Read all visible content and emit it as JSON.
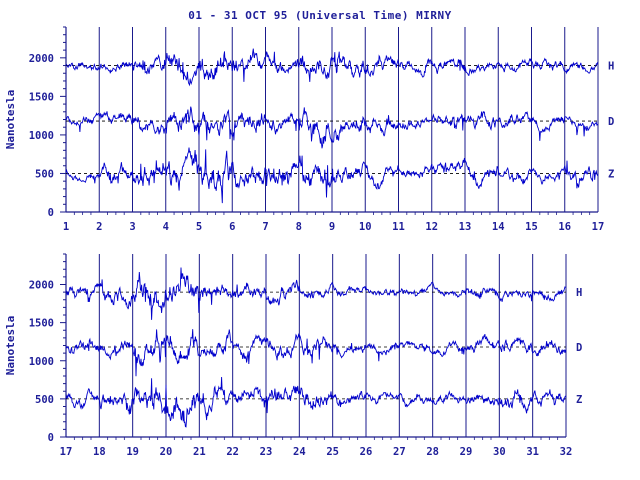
{
  "title": "01 - 31 OCT 95 (Universal Time) MIRNY",
  "chart_data": [
    {
      "type": "line",
      "panel": "top",
      "xlabel": "",
      "ylabel": "Nanotesla",
      "x_ticks": [
        "1",
        "2",
        "3",
        "4",
        "5",
        "6",
        "7",
        "8",
        "9",
        "10",
        "11",
        "12",
        "13",
        "14",
        "15",
        "16",
        "17"
      ],
      "xlim": [
        1,
        17
      ],
      "y_ticks": [
        "2000",
        "1500",
        "1000",
        "500",
        "0"
      ],
      "ylim": [
        0,
        2400
      ],
      "grid": "vertical at each day",
      "series": [
        {
          "name": "H",
          "baseline": 1900,
          "amplitude": 1.0,
          "activity": [
            0.6,
            0.9,
            1.2,
            1.8,
            2.2,
            1.6,
            1.3,
            1.8,
            1.6,
            1.2,
            0.9,
            1.1,
            0.9,
            0.8,
            0.9,
            0.7
          ]
        },
        {
          "name": "D",
          "baseline": 1180,
          "amplitude": 1.0,
          "activity": [
            0.7,
            1.0,
            1.2,
            1.8,
            2.0,
            1.6,
            1.3,
            1.9,
            1.6,
            1.3,
            1.0,
            1.3,
            1.1,
            0.9,
            0.9,
            1.0
          ]
        },
        {
          "name": "Z",
          "baseline": 500,
          "amplitude": 1.0,
          "activity": [
            0.7,
            1.2,
            1.7,
            2.2,
            2.4,
            1.8,
            1.7,
            2.0,
            1.5,
            1.2,
            0.9,
            1.3,
            1.2,
            1.1,
            0.9,
            1.2
          ]
        }
      ]
    },
    {
      "type": "line",
      "panel": "bottom",
      "xlabel": "",
      "ylabel": "Nanotesla",
      "x_ticks": [
        "17",
        "18",
        "19",
        "20",
        "21",
        "22",
        "23",
        "24",
        "25",
        "26",
        "27",
        "28",
        "29",
        "30",
        "31",
        "32"
      ],
      "xlim": [
        17,
        32
      ],
      "y_ticks": [
        "2000",
        "1500",
        "1000",
        "500",
        "0"
      ],
      "ylim": [
        0,
        2400
      ],
      "grid": "vertical at each day",
      "series": [
        {
          "name": "H",
          "baseline": 1900,
          "amplitude": 1.0,
          "activity": [
            0.9,
            1.3,
            2.2,
            2.0,
            1.3,
            1.0,
            1.3,
            1.0,
            0.7,
            0.6,
            0.7,
            0.6,
            0.8,
            0.8,
            0.9
          ]
        },
        {
          "name": "D",
          "baseline": 1180,
          "amplitude": 1.0,
          "activity": [
            1.0,
            1.2,
            2.0,
            2.2,
            1.5,
            1.3,
            1.5,
            1.3,
            0.9,
            0.7,
            0.7,
            0.7,
            0.9,
            1.1,
            1.1
          ]
        },
        {
          "name": "Z",
          "baseline": 500,
          "amplitude": 1.0,
          "activity": [
            1.0,
            1.4,
            2.3,
            2.5,
            1.6,
            1.4,
            1.7,
            1.5,
            1.0,
            0.8,
            0.8,
            0.8,
            1.0,
            1.5,
            1.4
          ]
        }
      ]
    }
  ]
}
